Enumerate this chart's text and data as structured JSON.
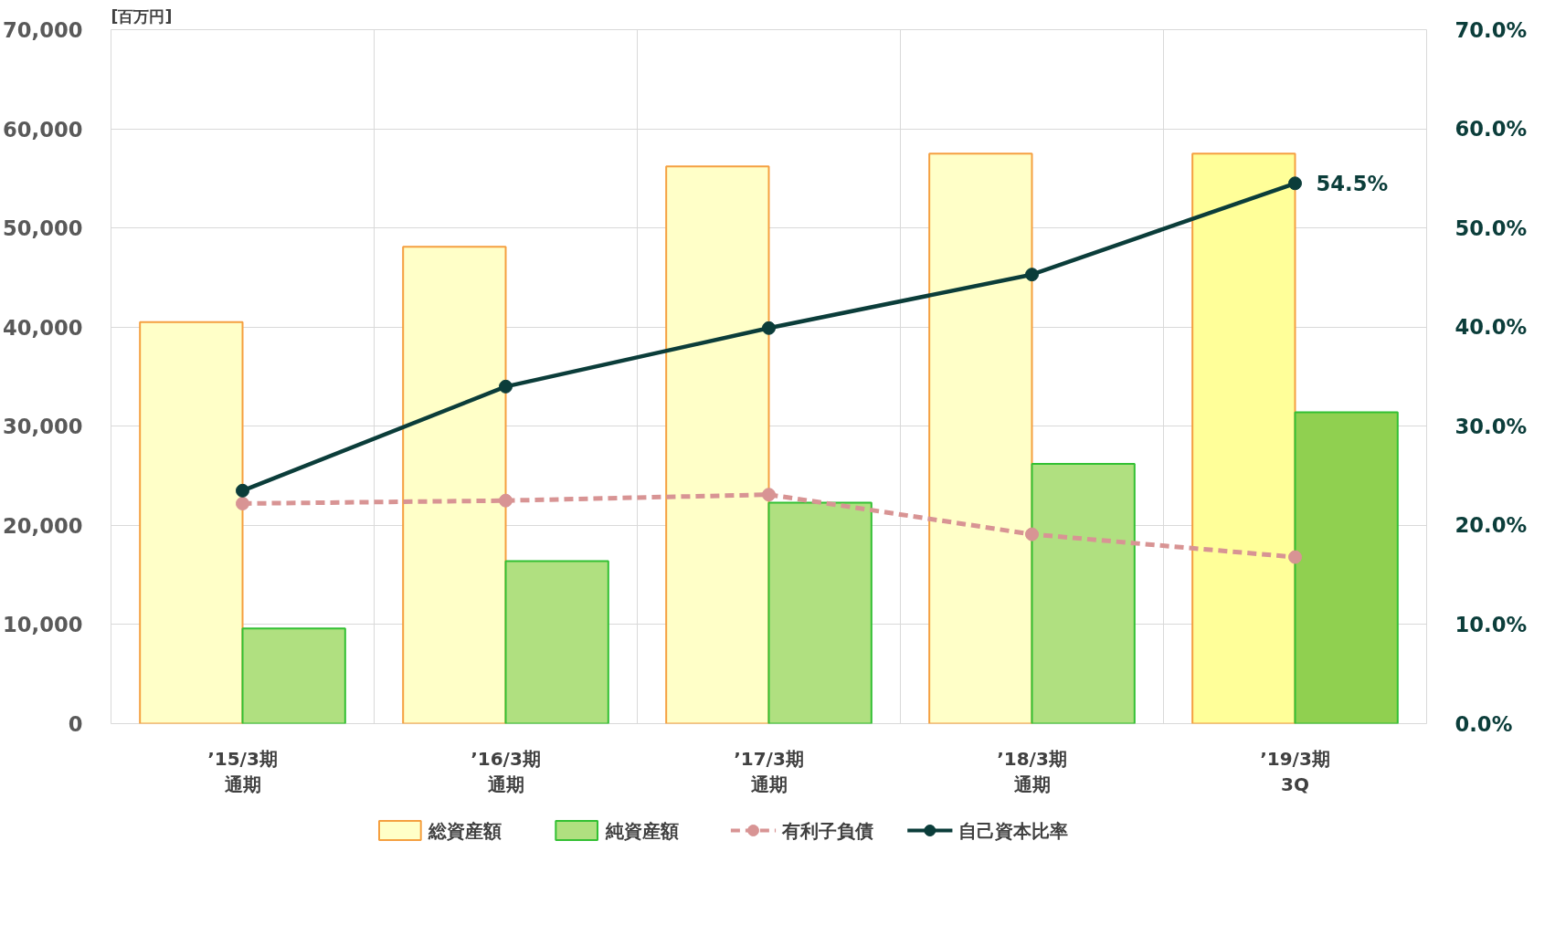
{
  "chart_data": {
    "type": "bar",
    "ylabel": "[百万円]",
    "categories": [
      "’15/3期通期",
      "’16/3期通期",
      "’17/3期通期",
      "’18/3期通期",
      "’19/3期3Q"
    ],
    "series": [
      {
        "name": "総資産額",
        "color": "#ffffc8",
        "colors": [
          "#ffffc8",
          "#ffffc8",
          "#ffffc8",
          "#ffffc8",
          "#ffff99"
        ],
        "values": [
          40500,
          48100,
          56200,
          57500,
          57500
        ]
      },
      {
        "name": "純資産額",
        "color": "#b0e080",
        "colors": [
          "#b0e080",
          "#b0e080",
          "#b0e080",
          "#b0e080",
          "#90d050"
        ],
        "values": [
          9600,
          16400,
          22300,
          26200,
          31400
        ]
      },
      {
        "name": "有利子負債",
        "type": "line",
        "color": "#d89494",
        "line_style": "dashed",
        "values": [
          22200,
          22500,
          23100,
          19100,
          16800
        ]
      },
      {
        "name": "自己資本比率",
        "type": "line",
        "color": "#0b3d3a",
        "line_style": "solid",
        "axis": "y2",
        "values": [
          23.5,
          34.0,
          39.9,
          45.3,
          54.5
        ],
        "value_labels": [
          null,
          null,
          null,
          null,
          "54.5%"
        ]
      }
    ],
    "ylim": [
      0,
      70000
    ],
    "yticks": [
      0,
      {
        "value": 10000,
        "label": "10,000"
      },
      {
        "value": 20000,
        "label": "20,000"
      },
      {
        "value": 30000,
        "label": "30,000"
      },
      {
        "value": 40000,
        "label": "40,000"
      },
      {
        "value": 50000,
        "label": "50,000"
      },
      {
        "value": 60000,
        "label": "60,000"
      },
      {
        "value": 70000,
        "label": "70,000"
      }
    ],
    "y2lim": [
      0,
      70
    ],
    "y2ticks": [
      {
        "value": 0,
        "label": "0.0%"
      },
      {
        "value": 10,
        "label": "10.0%"
      },
      {
        "value": 20,
        "label": "20.0%"
      },
      {
        "value": 30,
        "label": "30.0%"
      },
      {
        "value": 40,
        "label": "40.0%"
      },
      {
        "value": 50,
        "label": "50.0%"
      },
      {
        "value": 60,
        "label": "60.0%"
      },
      {
        "value": 70,
        "label": "70.0%"
      }
    ],
    "grid": true,
    "legend": "bottom",
    "marker": "circle"
  }
}
